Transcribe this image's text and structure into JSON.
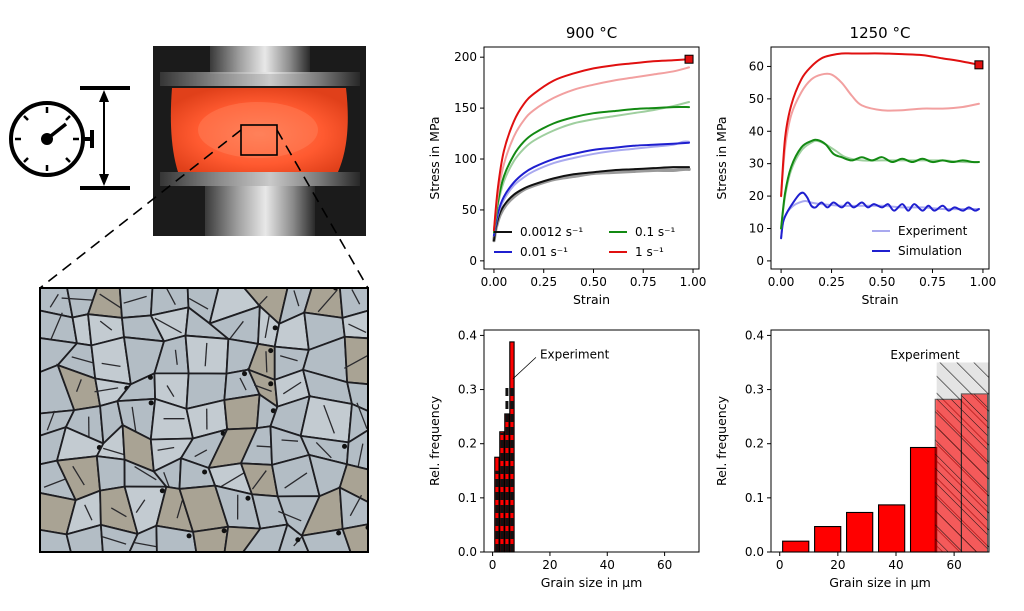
{
  "colors": {
    "black": "#111111",
    "black_exp": "#9a9a9a",
    "blue": "#1f1fcf",
    "blue_exp": "#a9a9ef",
    "green": "#138a13",
    "green_exp": "#9fcf9f",
    "red": "#e01010",
    "red_exp": "#f2a0a0",
    "bar_red": "#ff0000",
    "bar_hatch_face": "#dddddd"
  },
  "illustration": {
    "icons": [
      "stopwatch-gauge-icon",
      "height-dimension-icon"
    ],
    "photo": "hot-compression-specimen-photo",
    "micrograph": "grain-microstructure-micrograph"
  },
  "chart_data": [
    {
      "id": "stress-900",
      "type": "line",
      "title": "900 °C",
      "xlabel": "Strain",
      "ylabel": "Stress in MPa",
      "xlim": [
        -0.05,
        1.03
      ],
      "ylim": [
        -8,
        210
      ],
      "xticks": [
        "0.00",
        "0.25",
        "0.50",
        "0.75",
        "1.00"
      ],
      "xtick_values": [
        0,
        0.25,
        0.5,
        0.75,
        1.0
      ],
      "yticks": [
        "0",
        "50",
        "100",
        "150",
        "200"
      ],
      "ytick_values": [
        0,
        50,
        100,
        150,
        200
      ],
      "legend_location": "lower-right",
      "legend_columns": 2,
      "legend": [
        {
          "label": "0.0012 s⁻¹",
          "color_key": "black"
        },
        {
          "label": "0.1 s⁻¹",
          "color_key": "green"
        },
        {
          "label": "0.01 s⁻¹",
          "color_key": "blue"
        },
        {
          "label": "1 s⁻¹",
          "color_key": "red"
        }
      ],
      "series": [
        {
          "name": "0.0012 s⁻¹ experiment",
          "color_key": "black_exp",
          "width": 3.5,
          "x": [
            0,
            0.01,
            0.03,
            0.06,
            0.1,
            0.15,
            0.2,
            0.3,
            0.4,
            0.5,
            0.6,
            0.7,
            0.8,
            0.9,
            0.95,
            0.98
          ],
          "y": [
            20,
            32,
            45,
            55,
            63,
            70,
            74,
            80,
            83,
            86,
            87,
            88,
            89,
            89,
            90,
            90
          ]
        },
        {
          "name": "0.0012 s⁻¹ simulation",
          "color_key": "black",
          "width": 2,
          "x": [
            0,
            0.01,
            0.03,
            0.06,
            0.1,
            0.15,
            0.2,
            0.3,
            0.4,
            0.5,
            0.6,
            0.7,
            0.8,
            0.9,
            0.98
          ],
          "y": [
            20,
            33,
            47,
            57,
            65,
            71,
            75,
            81,
            85,
            87,
            89,
            90,
            91,
            92,
            92
          ]
        },
        {
          "name": "0.01 s⁻¹ experiment",
          "color_key": "blue_exp",
          "width": 2,
          "x": [
            0,
            0.02,
            0.05,
            0.1,
            0.15,
            0.2,
            0.3,
            0.4,
            0.5,
            0.6,
            0.7,
            0.8,
            0.9,
            0.95,
            0.98
          ],
          "y": [
            25,
            45,
            60,
            74,
            82,
            88,
            96,
            101,
            105,
            108,
            110,
            112,
            114,
            117,
            117
          ]
        },
        {
          "name": "0.01 s⁻¹ simulation",
          "color_key": "blue",
          "width": 2,
          "x": [
            0,
            0.02,
            0.05,
            0.1,
            0.15,
            0.2,
            0.3,
            0.4,
            0.5,
            0.6,
            0.7,
            0.8,
            0.9,
            0.98
          ],
          "y": [
            25,
            47,
            63,
            77,
            86,
            92,
            100,
            105,
            109,
            111,
            113,
            114,
            115,
            116
          ]
        },
        {
          "name": "0.1 s⁻¹ experiment",
          "color_key": "green_exp",
          "width": 2,
          "x": [
            0,
            0.02,
            0.05,
            0.1,
            0.15,
            0.2,
            0.3,
            0.4,
            0.5,
            0.6,
            0.7,
            0.8,
            0.9,
            0.98
          ],
          "y": [
            28,
            55,
            78,
            98,
            110,
            118,
            128,
            135,
            139,
            142,
            145,
            148,
            152,
            156
          ]
        },
        {
          "name": "0.1 s⁻¹ simulation",
          "color_key": "green",
          "width": 2,
          "x": [
            0,
            0.02,
            0.05,
            0.1,
            0.15,
            0.2,
            0.3,
            0.4,
            0.5,
            0.6,
            0.7,
            0.8,
            0.9,
            0.98
          ],
          "y": [
            28,
            58,
            83,
            104,
            117,
            125,
            135,
            141,
            145,
            147,
            149,
            150,
            151,
            151
          ]
        },
        {
          "name": "1 s⁻¹ experiment",
          "color_key": "red_exp",
          "width": 2,
          "x": [
            0,
            0.02,
            0.05,
            0.1,
            0.15,
            0.2,
            0.3,
            0.4,
            0.5,
            0.6,
            0.7,
            0.8,
            0.9,
            0.98
          ],
          "y": [
            30,
            65,
            95,
            122,
            138,
            148,
            160,
            168,
            173,
            177,
            180,
            183,
            186,
            190
          ]
        },
        {
          "name": "1 s⁻¹ simulation",
          "color_key": "red",
          "width": 2,
          "x": [
            0,
            0.02,
            0.05,
            0.1,
            0.15,
            0.2,
            0.3,
            0.4,
            0.5,
            0.6,
            0.7,
            0.8,
            0.9,
            0.98
          ],
          "y": [
            30,
            72,
            108,
            137,
            154,
            164,
            177,
            184,
            189,
            192,
            194,
            196,
            197,
            198
          ]
        }
      ],
      "end_marker": {
        "x": 0.98,
        "y": 198,
        "color_key": "red"
      }
    },
    {
      "id": "stress-1250",
      "type": "line",
      "title": "1250 °C",
      "xlabel": "Strain",
      "ylabel": "Stress in MPa",
      "xlim": [
        -0.05,
        1.03
      ],
      "ylim": [
        -2.5,
        66
      ],
      "xticks": [
        "0.00",
        "0.25",
        "0.50",
        "0.75",
        "1.00"
      ],
      "xtick_values": [
        0,
        0.25,
        0.5,
        0.75,
        1.0
      ],
      "yticks": [
        "0",
        "10",
        "20",
        "30",
        "40",
        "50",
        "60"
      ],
      "ytick_values": [
        0,
        10,
        20,
        30,
        40,
        50,
        60
      ],
      "legend_location": "lower-right",
      "legend_columns": 1,
      "legend": [
        {
          "label": "Experiment",
          "color_key": "blue_exp"
        },
        {
          "label": "Simulation",
          "color_key": "blue"
        }
      ],
      "series": [
        {
          "name": "0.01 s⁻¹ experiment",
          "color_key": "blue_exp",
          "width": 2,
          "x": [
            0,
            0.01,
            0.03,
            0.06,
            0.09,
            0.12,
            0.15,
            0.2,
            0.3,
            0.4,
            0.5,
            0.6,
            0.7,
            0.8,
            0.9,
            0.98
          ],
          "y": [
            7,
            12,
            15,
            17,
            18,
            18.5,
            18,
            17.5,
            17,
            17,
            17,
            16.5,
            16.5,
            16,
            16,
            16
          ]
        },
        {
          "name": "0.01 s⁻¹ simulation",
          "color_key": "blue",
          "width": 2,
          "x": [
            0,
            0.01,
            0.03,
            0.06,
            0.09,
            0.11,
            0.13,
            0.15,
            0.17,
            0.2,
            0.23,
            0.26,
            0.3,
            0.33,
            0.36,
            0.4,
            0.43,
            0.46,
            0.5,
            0.53,
            0.56,
            0.6,
            0.63,
            0.66,
            0.7,
            0.73,
            0.76,
            0.8,
            0.83,
            0.86,
            0.9,
            0.93,
            0.96,
            0.98
          ],
          "y": [
            7,
            12,
            15,
            18,
            20.5,
            21,
            19.5,
            17,
            16.5,
            18,
            16.5,
            18,
            16.5,
            18,
            16.5,
            18,
            16.5,
            17.5,
            16.5,
            17.5,
            15.5,
            17.5,
            15.5,
            17.5,
            15.5,
            17,
            15.5,
            17,
            15.5,
            16.5,
            15.5,
            16.5,
            15.5,
            16
          ]
        },
        {
          "name": "0.1 s⁻¹ experiment",
          "color_key": "green_exp",
          "width": 2,
          "x": [
            0,
            0.02,
            0.05,
            0.1,
            0.15,
            0.18,
            0.22,
            0.27,
            0.32,
            0.4,
            0.5,
            0.6,
            0.7,
            0.8,
            0.9,
            0.98
          ],
          "y": [
            10,
            20,
            28,
            34,
            36.5,
            37,
            36,
            34,
            32,
            31,
            31,
            31,
            31,
            31,
            30.5,
            30.5
          ]
        },
        {
          "name": "0.1 s⁻¹ simulation",
          "color_key": "green",
          "width": 2,
          "x": [
            0,
            0.02,
            0.05,
            0.1,
            0.15,
            0.18,
            0.22,
            0.26,
            0.3,
            0.35,
            0.4,
            0.45,
            0.5,
            0.55,
            0.6,
            0.65,
            0.7,
            0.75,
            0.8,
            0.85,
            0.9,
            0.95,
            0.98
          ],
          "y": [
            10,
            21,
            29,
            35,
            37,
            37.3,
            36,
            33,
            32,
            31,
            32,
            31,
            32,
            30.5,
            31.5,
            30.5,
            31.5,
            30.5,
            31,
            30.5,
            31,
            30.5,
            30.5
          ]
        },
        {
          "name": "1 s⁻¹ experiment",
          "color_key": "red_exp",
          "width": 2,
          "x": [
            0,
            0.02,
            0.05,
            0.1,
            0.15,
            0.2,
            0.25,
            0.3,
            0.35,
            0.4,
            0.5,
            0.6,
            0.7,
            0.8,
            0.9,
            0.98
          ],
          "y": [
            20,
            35,
            45,
            52,
            56,
            57.5,
            57.5,
            55,
            51,
            48,
            46.5,
            46.5,
            47,
            47,
            47.5,
            48.5
          ]
        },
        {
          "name": "1 s⁻¹ simulation",
          "color_key": "red",
          "width": 2,
          "x": [
            0,
            0.02,
            0.05,
            0.1,
            0.15,
            0.2,
            0.25,
            0.3,
            0.35,
            0.4,
            0.5,
            0.6,
            0.7,
            0.8,
            0.9,
            0.98
          ],
          "y": [
            20,
            38,
            48,
            56,
            60,
            62.5,
            63.5,
            64,
            64,
            64,
            64,
            63.8,
            63.5,
            62.5,
            61.5,
            60.5
          ]
        }
      ],
      "end_marker": {
        "x": 0.98,
        "y": 60.5,
        "color_key": "red"
      }
    },
    {
      "id": "grain-900",
      "type": "bar",
      "xlabel": "Grain size in µm",
      "ylabel": "Rel. frequency",
      "xlim": [
        -3,
        72
      ],
      "ylim": [
        0,
        0.41
      ],
      "xticks": [
        "0",
        "20",
        "40",
        "60"
      ],
      "xtick_values": [
        0,
        20,
        40,
        60
      ],
      "yticks": [
        "0.0",
        "0.1",
        "0.2",
        "0.3",
        "0.4"
      ],
      "ytick_values": [
        0,
        0.1,
        0.2,
        0.3,
        0.4
      ],
      "annotation": "Experiment",
      "bars": [
        {
          "x": 1.5,
          "width": 1.5,
          "value": 0.175
        },
        {
          "x": 3.25,
          "width": 1.5,
          "value": 0.222
        },
        {
          "x": 5.0,
          "width": 1.5,
          "value": 0.255
        },
        {
          "x": 6.75,
          "width": 1.5,
          "value": 0.388
        }
      ],
      "experiment_bars": [
        {
          "x": 1.5,
          "value": 0.15
        },
        {
          "x": 3.25,
          "value": 0.22
        },
        {
          "x": 5.0,
          "value": 0.31
        },
        {
          "x": 6.75,
          "value": 0.31
        }
      ]
    },
    {
      "id": "grain-1250",
      "type": "bar",
      "xlabel": "Grain size in µm",
      "ylabel": "Rel. frequency",
      "xlim": [
        -3,
        72
      ],
      "ylim": [
        0,
        0.41
      ],
      "xticks": [
        "0",
        "20",
        "40",
        "60"
      ],
      "xtick_values": [
        0,
        20,
        40,
        60
      ],
      "yticks": [
        "0.0",
        "0.1",
        "0.2",
        "0.3",
        "0.4"
      ],
      "ytick_values": [
        0,
        0.1,
        0.2,
        0.3,
        0.4
      ],
      "annotation": "Experiment",
      "experiment_bar": {
        "x0": 54,
        "x1": 72,
        "value": 0.35
      },
      "bars": [
        {
          "x": 5.5,
          "width": 9,
          "value": 0.02
        },
        {
          "x": 16.5,
          "width": 9,
          "value": 0.047
        },
        {
          "x": 27.5,
          "width": 9,
          "value": 0.073
        },
        {
          "x": 38.5,
          "width": 9,
          "value": 0.087
        },
        {
          "x": 49.5,
          "width": 9,
          "value": 0.193
        },
        {
          "x": 58.0,
          "width": 9,
          "value": 0.282,
          "hatched": true
        },
        {
          "x": 67.0,
          "width": 9,
          "value": 0.292,
          "hatched": true
        }
      ]
    }
  ]
}
